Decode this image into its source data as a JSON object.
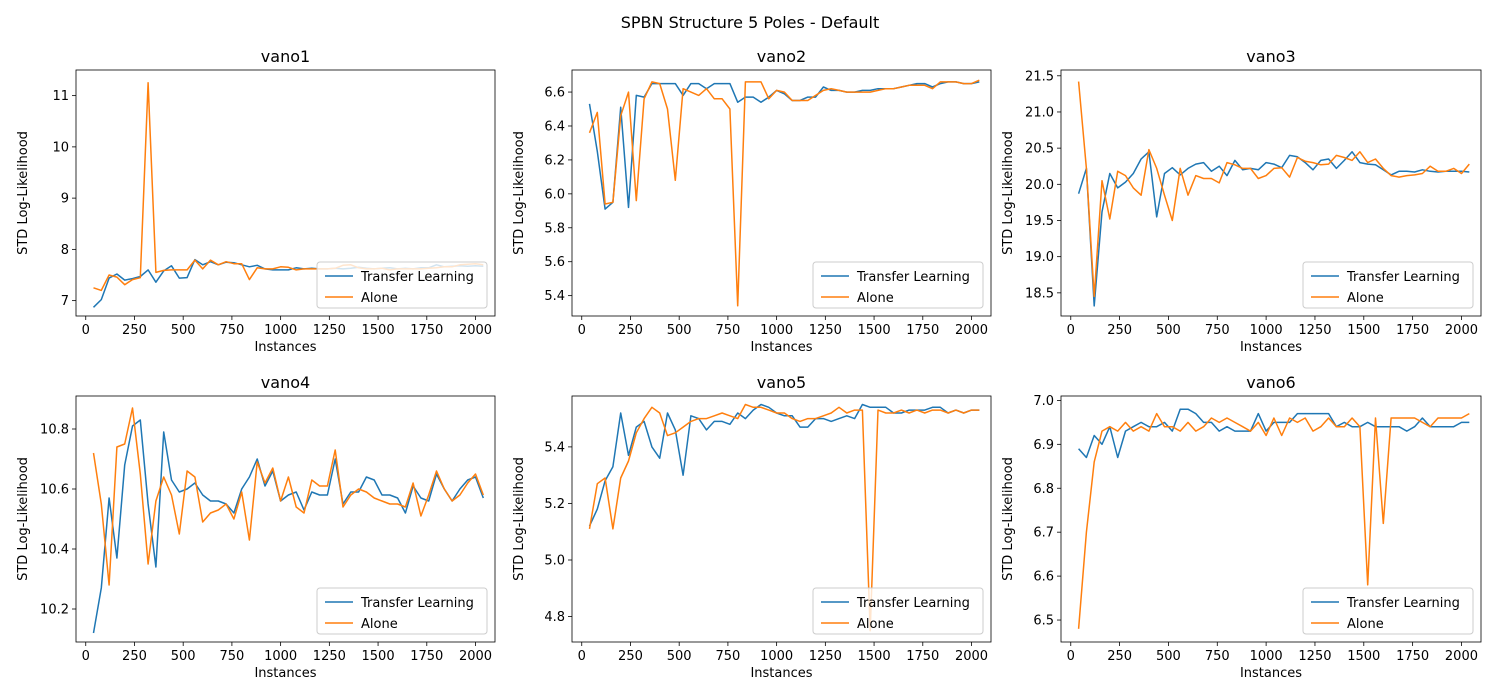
{
  "figure": {
    "title": "SPBN Structure 5 Poles - Default"
  },
  "series_colors": {
    "Transfer Learning": "#1f77b4",
    "Alone": "#ff7f0e"
  },
  "chart_data": [
    {
      "type": "line",
      "title": "vano1",
      "xlabel": "Instances",
      "ylabel": "STD Log-Likelihood",
      "xlim": [
        -50,
        2100
      ],
      "ylim": [
        6.7,
        11.5
      ],
      "xticks": [
        0,
        250,
        500,
        750,
        1000,
        1250,
        1500,
        1750,
        2000
      ],
      "yticks": [
        7,
        8,
        9,
        10,
        11
      ],
      "legend": "lower right",
      "x": [
        40,
        80,
        120,
        160,
        200,
        240,
        280,
        320,
        360,
        400,
        440,
        480,
        520,
        560,
        600,
        640,
        680,
        720,
        760,
        800,
        840,
        880,
        920,
        960,
        1000,
        1040,
        1080,
        1120,
        1160,
        1200,
        1240,
        1280,
        1320,
        1360,
        1400,
        1440,
        1480,
        1520,
        1560,
        1600,
        1640,
        1680,
        1720,
        1760,
        1800,
        1840,
        1880,
        1920,
        1960,
        2000,
        2040
      ],
      "series": [
        {
          "name": "Transfer Learning",
          "values": [
            6.87,
            7.02,
            7.44,
            7.52,
            7.4,
            7.43,
            7.47,
            7.6,
            7.36,
            7.58,
            7.68,
            7.44,
            7.45,
            7.8,
            7.7,
            7.76,
            7.7,
            7.75,
            7.74,
            7.7,
            7.66,
            7.69,
            7.62,
            7.6,
            7.6,
            7.6,
            7.64,
            7.62,
            7.63,
            7.62,
            7.62,
            7.63,
            7.62,
            7.63,
            7.65,
            7.63,
            7.62,
            7.63,
            7.64,
            7.62,
            7.63,
            7.62,
            7.64,
            7.64,
            7.7,
            7.66,
            7.67,
            7.68,
            7.67,
            7.68,
            7.67
          ]
        },
        {
          "name": "Alone",
          "values": [
            7.25,
            7.2,
            7.5,
            7.46,
            7.31,
            7.41,
            7.45,
            11.25,
            7.55,
            7.59,
            7.6,
            7.6,
            7.6,
            7.79,
            7.62,
            7.79,
            7.7,
            7.76,
            7.72,
            7.72,
            7.41,
            7.64,
            7.62,
            7.62,
            7.66,
            7.65,
            7.6,
            7.62,
            7.62,
            7.62,
            7.62,
            7.63,
            7.69,
            7.7,
            7.64,
            7.62,
            7.62,
            7.63,
            7.6,
            7.62,
            7.62,
            7.62,
            7.62,
            7.63,
            7.64,
            7.66,
            7.66,
            7.7,
            7.71,
            7.72,
            7.7
          ]
        }
      ]
    },
    {
      "type": "line",
      "title": "vano2",
      "xlabel": "Instances",
      "ylabel": "STD Log-Likelihood",
      "xlim": [
        -50,
        2100
      ],
      "ylim": [
        5.28,
        6.73
      ],
      "xticks": [
        0,
        250,
        500,
        750,
        1000,
        1250,
        1500,
        1750,
        2000
      ],
      "yticks": [
        5.4,
        5.6,
        5.8,
        6.0,
        6.2,
        6.4,
        6.6
      ],
      "legend": "lower right",
      "x": [
        40,
        80,
        120,
        160,
        200,
        240,
        280,
        320,
        360,
        400,
        440,
        480,
        520,
        560,
        600,
        640,
        680,
        720,
        760,
        800,
        840,
        880,
        920,
        960,
        1000,
        1040,
        1080,
        1120,
        1160,
        1200,
        1240,
        1280,
        1320,
        1360,
        1400,
        1440,
        1480,
        1520,
        1560,
        1600,
        1640,
        1680,
        1720,
        1760,
        1800,
        1840,
        1880,
        1920,
        1960,
        2000,
        2040
      ],
      "series": [
        {
          "name": "Transfer Learning",
          "values": [
            6.53,
            6.25,
            5.91,
            5.95,
            6.51,
            5.92,
            6.58,
            6.57,
            6.65,
            6.65,
            6.65,
            6.65,
            6.58,
            6.65,
            6.65,
            6.62,
            6.65,
            6.65,
            6.65,
            6.54,
            6.57,
            6.57,
            6.54,
            6.57,
            6.61,
            6.59,
            6.55,
            6.55,
            6.57,
            6.57,
            6.63,
            6.61,
            6.61,
            6.6,
            6.6,
            6.61,
            6.61,
            6.62,
            6.62,
            6.62,
            6.63,
            6.64,
            6.65,
            6.65,
            6.63,
            6.65,
            6.66,
            6.66,
            6.65,
            6.65,
            6.66
          ]
        },
        {
          "name": "Alone",
          "values": [
            6.36,
            6.48,
            5.94,
            5.95,
            6.46,
            6.6,
            5.96,
            6.56,
            6.66,
            6.65,
            6.5,
            6.08,
            6.62,
            6.6,
            6.58,
            6.62,
            6.56,
            6.56,
            6.5,
            5.34,
            6.66,
            6.66,
            6.66,
            6.56,
            6.61,
            6.6,
            6.55,
            6.55,
            6.55,
            6.58,
            6.61,
            6.62,
            6.61,
            6.6,
            6.6,
            6.6,
            6.6,
            6.61,
            6.62,
            6.62,
            6.63,
            6.64,
            6.64,
            6.64,
            6.62,
            6.66,
            6.66,
            6.66,
            6.65,
            6.65,
            6.67
          ]
        }
      ]
    },
    {
      "type": "line",
      "title": "vano3",
      "xlabel": "Instances",
      "ylabel": "STD Log-Likelihood",
      "xlim": [
        -50,
        2100
      ],
      "ylim": [
        18.18,
        21.58
      ],
      "xticks": [
        0,
        250,
        500,
        750,
        1000,
        1250,
        1500,
        1750,
        2000
      ],
      "yticks": [
        18.5,
        19.0,
        19.5,
        20.0,
        20.5,
        21.0,
        21.5
      ],
      "legend": "lower right",
      "x": [
        40,
        80,
        120,
        160,
        200,
        240,
        280,
        320,
        360,
        400,
        440,
        480,
        520,
        560,
        600,
        640,
        680,
        720,
        760,
        800,
        840,
        880,
        920,
        960,
        1000,
        1040,
        1080,
        1120,
        1160,
        1200,
        1240,
        1280,
        1320,
        1360,
        1400,
        1440,
        1480,
        1520,
        1560,
        1600,
        1640,
        1680,
        1720,
        1760,
        1800,
        1840,
        1880,
        1920,
        1960,
        2000,
        2040
      ],
      "series": [
        {
          "name": "Transfer Learning",
          "values": [
            19.87,
            20.22,
            18.32,
            19.62,
            20.15,
            19.95,
            20.03,
            20.15,
            20.35,
            20.45,
            19.55,
            20.15,
            20.23,
            20.13,
            20.22,
            20.28,
            20.3,
            20.18,
            20.25,
            20.12,
            20.33,
            20.2,
            20.22,
            20.2,
            20.3,
            20.28,
            20.23,
            20.4,
            20.38,
            20.3,
            20.2,
            20.33,
            20.35,
            20.22,
            20.33,
            20.45,
            20.3,
            20.28,
            20.27,
            20.2,
            20.13,
            20.18,
            20.18,
            20.17,
            20.2,
            20.18,
            20.17,
            20.18,
            20.18,
            20.18,
            20.17
          ]
        },
        {
          "name": "Alone",
          "values": [
            21.42,
            20.22,
            18.45,
            20.05,
            19.52,
            20.18,
            20.12,
            19.95,
            19.85,
            20.48,
            20.22,
            19.85,
            19.5,
            20.22,
            19.85,
            20.12,
            20.08,
            20.08,
            20.02,
            20.3,
            20.27,
            20.22,
            20.22,
            20.08,
            20.12,
            20.22,
            20.23,
            20.1,
            20.37,
            20.32,
            20.3,
            20.27,
            20.28,
            20.4,
            20.37,
            20.33,
            20.45,
            20.3,
            20.35,
            20.22,
            20.12,
            20.1,
            20.12,
            20.13,
            20.15,
            20.25,
            20.18,
            20.18,
            20.22,
            20.15,
            20.28
          ]
        }
      ]
    },
    {
      "type": "line",
      "title": "vano4",
      "xlabel": "Instances",
      "ylabel": "STD Log-Likelihood",
      "xlim": [
        -50,
        2100
      ],
      "ylim": [
        10.09,
        10.91
      ],
      "xticks": [
        0,
        250,
        500,
        750,
        1000,
        1250,
        1500,
        1750,
        2000
      ],
      "yticks": [
        10.2,
        10.4,
        10.6,
        10.8
      ],
      "legend": "lower right",
      "x": [
        40,
        80,
        120,
        160,
        200,
        240,
        280,
        320,
        360,
        400,
        440,
        480,
        520,
        560,
        600,
        640,
        680,
        720,
        760,
        800,
        840,
        880,
        920,
        960,
        1000,
        1040,
        1080,
        1120,
        1160,
        1200,
        1240,
        1280,
        1320,
        1360,
        1400,
        1440,
        1480,
        1520,
        1560,
        1600,
        1640,
        1680,
        1720,
        1760,
        1800,
        1840,
        1880,
        1920,
        1960,
        2000,
        2040
      ],
      "series": [
        {
          "name": "Transfer Learning",
          "values": [
            10.12,
            10.27,
            10.57,
            10.37,
            10.68,
            10.81,
            10.83,
            10.55,
            10.34,
            10.79,
            10.63,
            10.59,
            10.6,
            10.62,
            10.58,
            10.56,
            10.56,
            10.55,
            10.52,
            10.6,
            10.64,
            10.7,
            10.61,
            10.66,
            10.56,
            10.58,
            10.59,
            10.53,
            10.59,
            10.58,
            10.58,
            10.7,
            10.55,
            10.59,
            10.59,
            10.64,
            10.63,
            10.58,
            10.58,
            10.57,
            10.52,
            10.61,
            10.57,
            10.56,
            10.65,
            10.6,
            10.56,
            10.6,
            10.63,
            10.64,
            10.57
          ]
        },
        {
          "name": "Alone",
          "values": [
            10.72,
            10.55,
            10.28,
            10.74,
            10.75,
            10.87,
            10.65,
            10.35,
            10.56,
            10.64,
            10.58,
            10.45,
            10.66,
            10.64,
            10.49,
            10.52,
            10.53,
            10.55,
            10.5,
            10.59,
            10.43,
            10.69,
            10.62,
            10.67,
            10.56,
            10.64,
            10.54,
            10.52,
            10.63,
            10.61,
            10.61,
            10.73,
            10.54,
            10.58,
            10.6,
            10.59,
            10.57,
            10.56,
            10.55,
            10.55,
            10.54,
            10.62,
            10.51,
            10.58,
            10.66,
            10.6,
            10.56,
            10.58,
            10.62,
            10.65,
            10.58
          ]
        }
      ]
    },
    {
      "type": "line",
      "title": "vano5",
      "xlabel": "Instances",
      "ylabel": "STD Log-Likelihood",
      "xlim": [
        -50,
        2100
      ],
      "ylim": [
        4.71,
        5.58
      ],
      "xticks": [
        0,
        250,
        500,
        750,
        1000,
        1250,
        1500,
        1750,
        2000
      ],
      "yticks": [
        4.8,
        5.0,
        5.2,
        5.4
      ],
      "legend": "lower right",
      "x": [
        40,
        80,
        120,
        160,
        200,
        240,
        280,
        320,
        360,
        400,
        440,
        480,
        520,
        560,
        600,
        640,
        680,
        720,
        760,
        800,
        840,
        880,
        920,
        960,
        1000,
        1040,
        1080,
        1120,
        1160,
        1200,
        1240,
        1280,
        1320,
        1360,
        1400,
        1440,
        1480,
        1520,
        1560,
        1600,
        1640,
        1680,
        1720,
        1760,
        1800,
        1840,
        1880,
        1920,
        1960,
        2000,
        2040
      ],
      "series": [
        {
          "name": "Transfer Learning",
          "values": [
            5.12,
            5.18,
            5.28,
            5.33,
            5.52,
            5.37,
            5.47,
            5.49,
            5.4,
            5.36,
            5.52,
            5.46,
            5.3,
            5.51,
            5.5,
            5.46,
            5.49,
            5.49,
            5.48,
            5.52,
            5.5,
            5.53,
            5.55,
            5.54,
            5.52,
            5.51,
            5.51,
            5.47,
            5.47,
            5.5,
            5.5,
            5.49,
            5.5,
            5.51,
            5.5,
            5.55,
            5.54,
            5.54,
            5.54,
            5.52,
            5.52,
            5.53,
            5.53,
            5.53,
            5.54,
            5.54,
            5.52,
            5.53,
            5.52,
            5.53,
            5.53
          ]
        },
        {
          "name": "Alone",
          "values": [
            5.11,
            5.27,
            5.29,
            5.11,
            5.29,
            5.35,
            5.45,
            5.5,
            5.54,
            5.52,
            5.44,
            5.45,
            5.47,
            5.49,
            5.5,
            5.5,
            5.51,
            5.52,
            5.51,
            5.5,
            5.55,
            5.54,
            5.54,
            5.53,
            5.52,
            5.52,
            5.5,
            5.49,
            5.5,
            5.5,
            5.51,
            5.52,
            5.54,
            5.52,
            5.53,
            5.53,
            4.75,
            5.53,
            5.52,
            5.52,
            5.53,
            5.52,
            5.53,
            5.52,
            5.53,
            5.53,
            5.52,
            5.53,
            5.52,
            5.53,
            5.53
          ]
        }
      ]
    },
    {
      "type": "line",
      "title": "vano6",
      "xlabel": "Instances",
      "ylabel": "STD Log-Likelihood",
      "xlim": [
        -50,
        2100
      ],
      "ylim": [
        6.45,
        7.01
      ],
      "xticks": [
        0,
        250,
        500,
        750,
        1000,
        1250,
        1500,
        1750,
        2000
      ],
      "yticks": [
        6.5,
        6.6,
        6.7,
        6.8,
        6.9,
        7.0
      ],
      "legend": "lower right",
      "x": [
        40,
        80,
        120,
        160,
        200,
        240,
        280,
        320,
        360,
        400,
        440,
        480,
        520,
        560,
        600,
        640,
        680,
        720,
        760,
        800,
        840,
        880,
        920,
        960,
        1000,
        1040,
        1080,
        1120,
        1160,
        1200,
        1240,
        1280,
        1320,
        1360,
        1400,
        1440,
        1480,
        1520,
        1560,
        1600,
        1640,
        1680,
        1720,
        1760,
        1800,
        1840,
        1880,
        1920,
        1960,
        2000,
        2040
      ],
      "series": [
        {
          "name": "Transfer Learning",
          "values": [
            6.89,
            6.87,
            6.92,
            6.9,
            6.94,
            6.87,
            6.93,
            6.94,
            6.95,
            6.94,
            6.94,
            6.95,
            6.93,
            6.98,
            6.98,
            6.97,
            6.95,
            6.95,
            6.93,
            6.94,
            6.93,
            6.93,
            6.93,
            6.97,
            6.93,
            6.95,
            6.95,
            6.95,
            6.97,
            6.97,
            6.97,
            6.97,
            6.97,
            6.94,
            6.95,
            6.94,
            6.94,
            6.95,
            6.94,
            6.94,
            6.94,
            6.94,
            6.93,
            6.94,
            6.96,
            6.94,
            6.94,
            6.94,
            6.94,
            6.95,
            6.95
          ]
        },
        {
          "name": "Alone",
          "values": [
            6.48,
            6.7,
            6.86,
            6.93,
            6.94,
            6.93,
            6.95,
            6.93,
            6.94,
            6.93,
            6.97,
            6.94,
            6.94,
            6.93,
            6.95,
            6.93,
            6.94,
            6.96,
            6.95,
            6.96,
            6.95,
            6.94,
            6.93,
            6.95,
            6.92,
            6.96,
            6.92,
            6.96,
            6.95,
            6.96,
            6.93,
            6.94,
            6.96,
            6.94,
            6.94,
            6.96,
            6.94,
            6.58,
            6.96,
            6.72,
            6.96,
            6.96,
            6.96,
            6.96,
            6.95,
            6.94,
            6.96,
            6.96,
            6.96,
            6.96,
            6.97
          ]
        }
      ]
    }
  ]
}
